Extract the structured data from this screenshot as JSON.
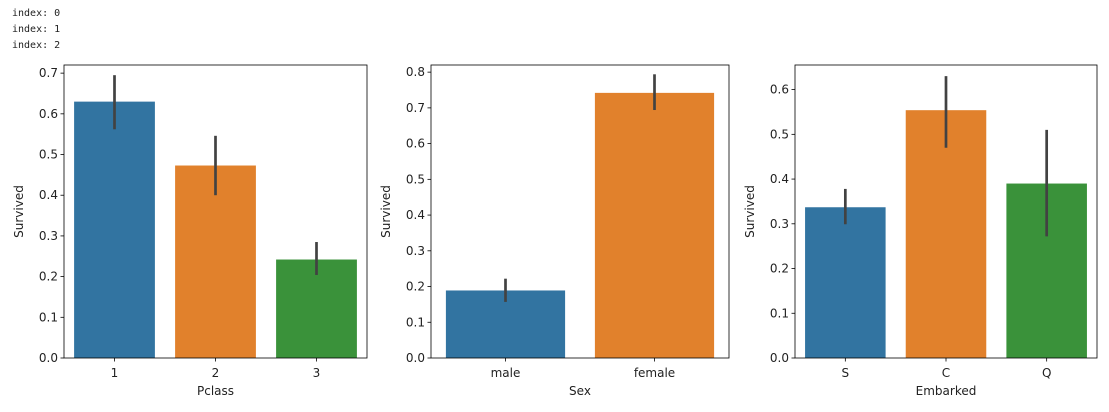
{
  "console_output": [
    "index: 0",
    "index: 1",
    "index: 2"
  ],
  "chart_data": [
    {
      "type": "bar",
      "title": "",
      "xlabel": "Pclass",
      "ylabel": "Survived",
      "categories": [
        "1",
        "2",
        "3"
      ],
      "values": [
        0.63,
        0.473,
        0.242
      ],
      "ci": [
        [
          0.562,
          0.695
        ],
        [
          0.4,
          0.546
        ],
        [
          0.204,
          0.285
        ]
      ],
      "colors": [
        "#3274a1",
        "#e1812c",
        "#3a923a"
      ],
      "ylim": [
        0,
        0.72
      ],
      "yticks": [
        0.0,
        0.1,
        0.2,
        0.3,
        0.4,
        0.5,
        0.6,
        0.7
      ],
      "ytick_labels": [
        "0.0",
        "0.1",
        "0.2",
        "0.3",
        "0.4",
        "0.5",
        "0.6",
        "0.7"
      ]
    },
    {
      "type": "bar",
      "title": "",
      "xlabel": "Sex",
      "ylabel": "Survived",
      "categories": [
        "male",
        "female"
      ],
      "values": [
        0.189,
        0.742
      ],
      "ci": [
        [
          0.157,
          0.222
        ],
        [
          0.694,
          0.794
        ]
      ],
      "colors": [
        "#3274a1",
        "#e1812c"
      ],
      "ylim": [
        0,
        0.82
      ],
      "yticks": [
        0.0,
        0.1,
        0.2,
        0.3,
        0.4,
        0.5,
        0.6,
        0.7,
        0.8
      ],
      "ytick_labels": [
        "0.0",
        "0.1",
        "0.2",
        "0.3",
        "0.4",
        "0.5",
        "0.6",
        "0.7",
        "0.8"
      ]
    },
    {
      "type": "bar",
      "title": "",
      "xlabel": "Embarked",
      "ylabel": "Survived",
      "categories": [
        "S",
        "C",
        "Q"
      ],
      "values": [
        0.337,
        0.554,
        0.39
      ],
      "ci": [
        [
          0.299,
          0.378
        ],
        [
          0.47,
          0.63
        ],
        [
          0.272,
          0.51
        ]
      ],
      "colors": [
        "#3274a1",
        "#e1812c",
        "#3a923a"
      ],
      "ylim": [
        0,
        0.655
      ],
      "yticks": [
        0.0,
        0.1,
        0.2,
        0.3,
        0.4,
        0.5,
        0.6
      ],
      "ytick_labels": [
        "0.0",
        "0.1",
        "0.2",
        "0.3",
        "0.4",
        "0.5",
        "0.6"
      ]
    }
  ]
}
